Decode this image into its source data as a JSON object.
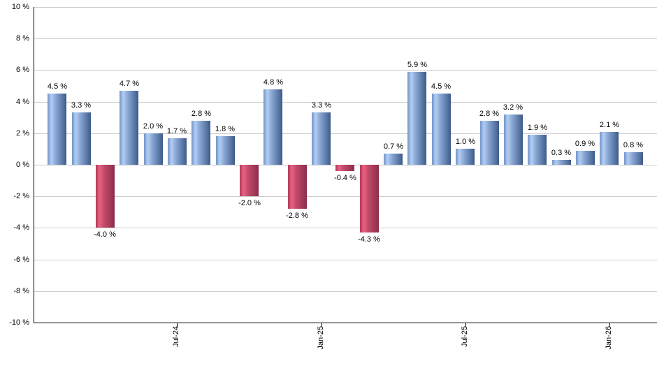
{
  "chart_data": {
    "type": "bar",
    "series_name": "monthly-returns-percent",
    "values": [
      4.5,
      3.3,
      -4.0,
      4.7,
      2.0,
      1.7,
      2.8,
      1.8,
      -2.0,
      4.8,
      -2.8,
      3.3,
      -0.4,
      -4.3,
      0.7,
      5.9,
      4.5,
      1.0,
      2.8,
      3.2,
      1.9,
      0.3,
      0.9,
      2.1,
      0.8
    ],
    "bar_labels": [
      "4.5 %",
      "3.3 %",
      "-4.0 %",
      "4.7 %",
      "2.0 %",
      "1.7 %",
      "2.8 %",
      "1.8 %",
      "-2.0 %",
      "4.8 %",
      "-2.8 %",
      "3.3 %",
      "-0.4 %",
      "-4.3 %",
      "0.7 %",
      "5.9 %",
      "4.5 %",
      "1.0 %",
      "2.8 %",
      "3.2 %",
      "1.9 %",
      "0.3 %",
      "0.9 %",
      "2.1 %",
      "0.8 %"
    ],
    "x_ticks": [
      {
        "label": "Jul-24",
        "bar_index": 5
      },
      {
        "label": "Jan-25",
        "bar_index": 11
      },
      {
        "label": "Jul-25",
        "bar_index": 17
      },
      {
        "label": "Jan-26",
        "bar_index": 23
      }
    ],
    "y_tick_labels": [
      "10 %",
      "8 %",
      "6 %",
      "4 %",
      "2 %",
      "0 %",
      "-2 %",
      "-4 %",
      "-6 %",
      "-8 %",
      "-10 %"
    ],
    "ylim": [
      -10,
      10
    ],
    "y_step": 2,
    "grid": true,
    "legend": false,
    "colors": {
      "positive_bar_gradient": [
        "#6e94c9",
        "#b4cdf0",
        "#87a5d3",
        "#3e5b88"
      ],
      "negative_bar_gradient": [
        "#a83a58",
        "#ee5f80",
        "#c04a68",
        "#8c2d4b"
      ],
      "grid_line": "#cccccc",
      "axis_line": "#000000",
      "text": "#000000",
      "background": "#ffffff"
    }
  }
}
